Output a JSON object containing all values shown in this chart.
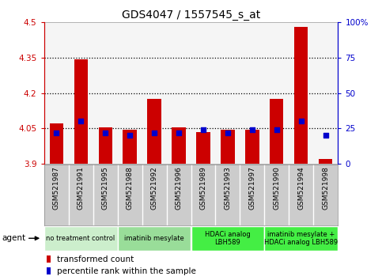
{
  "title": "GDS4047 / 1557545_s_at",
  "samples": [
    "GSM521987",
    "GSM521991",
    "GSM521995",
    "GSM521988",
    "GSM521992",
    "GSM521996",
    "GSM521989",
    "GSM521993",
    "GSM521997",
    "GSM521990",
    "GSM521994",
    "GSM521998"
  ],
  "transformed_count": [
    4.07,
    4.345,
    4.055,
    4.045,
    4.175,
    4.055,
    4.035,
    4.045,
    4.045,
    4.175,
    4.48,
    3.92
  ],
  "percentile_rank": [
    22,
    30,
    22,
    20,
    22,
    22,
    24,
    22,
    24,
    24,
    30,
    20
  ],
  "bar_bottom": 3.9,
  "ylim_left": [
    3.9,
    4.5
  ],
  "ylim_right": [
    0,
    100
  ],
  "yticks_left": [
    3.9,
    4.05,
    4.2,
    4.35,
    4.5
  ],
  "yticks_right": [
    0,
    25,
    50,
    75,
    100
  ],
  "ytick_labels_left": [
    "3.9",
    "4.05",
    "4.2",
    "4.35",
    "4.5"
  ],
  "ytick_labels_right": [
    "0",
    "25",
    "50",
    "75",
    "100%"
  ],
  "hlines": [
    4.05,
    4.2,
    4.35
  ],
  "bar_color": "#cc0000",
  "dot_color": "#0000cc",
  "agent_groups": [
    {
      "label": "no treatment control",
      "start": 0,
      "end": 3,
      "color": "#cceecc"
    },
    {
      "label": "imatinib mesylate",
      "start": 3,
      "end": 6,
      "color": "#99dd99"
    },
    {
      "label": "HDACi analog\nLBH589",
      "start": 6,
      "end": 9,
      "color": "#44ee44"
    },
    {
      "label": "imatinib mesylate +\nHDACi analog LBH589",
      "start": 9,
      "end": 12,
      "color": "#44ee44"
    }
  ],
  "legend_items": [
    {
      "label": "transformed count",
      "color": "#cc0000"
    },
    {
      "label": "percentile rank within the sample",
      "color": "#0000cc"
    }
  ],
  "bg_plot": "#f5f5f5",
  "sample_row_bg": "#cccccc",
  "left_axis_color": "#cc0000",
  "right_axis_color": "#0000cc",
  "grid_color": "#000000"
}
